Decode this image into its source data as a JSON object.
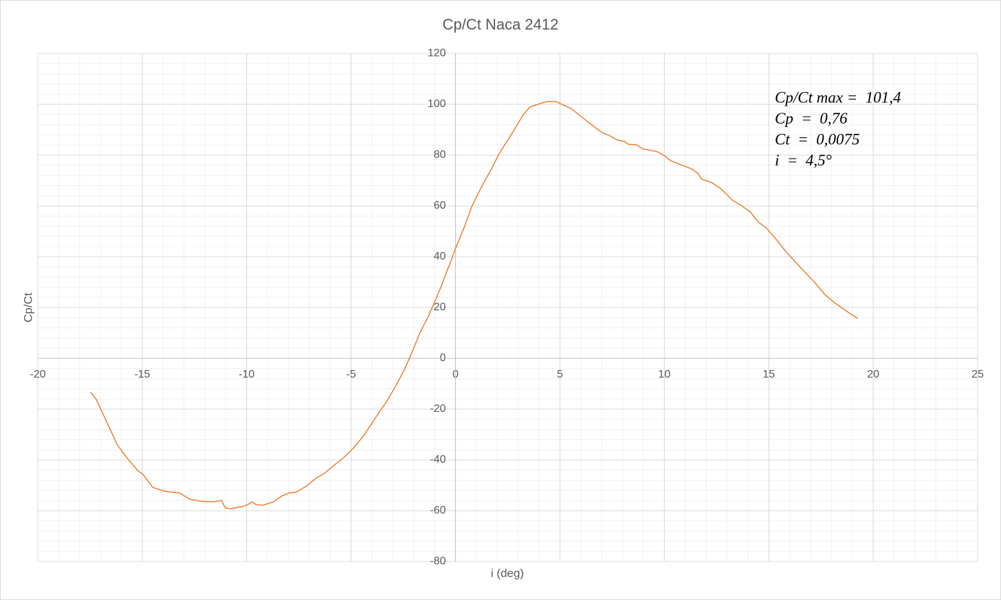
{
  "chart_data": {
    "type": "line",
    "title": "Cp/Ct Naca 2412",
    "x_label": "i (deg)",
    "y_label": "Cp/Ct",
    "annotations": [
      "Cp/Ct max =  101,4",
      "Cp  =  0,76",
      "Ct  =  0,0075",
      "i  =  4,5°"
    ],
    "color": "#ed7d31",
    "xlim": [
      -20,
      25
    ],
    "ylim": [
      -80,
      120
    ],
    "xticks": [
      -20,
      -15,
      -10,
      -5,
      0,
      5,
      10,
      15,
      20,
      25
    ],
    "yticks": [
      -80,
      -60,
      -40,
      -20,
      0,
      20,
      40,
      60,
      80,
      100,
      120
    ],
    "grid": true,
    "minor_grid_step": {
      "x": 1,
      "y": 4
    },
    "x": [
      -17.48,
      -17.2,
      -16.85,
      -16.5,
      -16.2,
      -15.7,
      -15.2,
      -14.94,
      -14.5,
      -13.9,
      -13.2,
      -12.74,
      -12.25,
      -11.6,
      -11.2,
      -11.03,
      -10.76,
      -10.27,
      -10,
      -9.74,
      -9.55,
      -9.22,
      -8.72,
      -8.3,
      -7.97,
      -7.64,
      -7.14,
      -6.7,
      -6.3,
      -5.83,
      -5.33,
      -4.9,
      -4.4,
      -3.75,
      -3.26,
      -2.86,
      -2.44,
      -2.04,
      -1.71,
      -1.32,
      -0.72,
      0,
      0.43,
      0.79,
      1.25,
      1.74,
      2.07,
      2.73,
      3.23,
      3.55,
      4.05,
      4.38,
      4.8,
      5.53,
      6.35,
      7.01,
      7.34,
      7.77,
      8.1,
      8.26,
      8.66,
      8.99,
      9.64,
      9.97,
      10.3,
      10.8,
      11.3,
      11.62,
      11.78,
      12.28,
      12.7,
      13.27,
      13.66,
      14.09,
      14.52,
      14.85,
      15.31,
      15.83,
      16.56,
      17.22,
      17.71,
      18.2,
      18.86,
      19.26
    ],
    "values": [
      -13.2,
      -16.2,
      -22.4,
      -28.6,
      -34,
      -39.5,
      -44.3,
      -45.9,
      -50.8,
      -52.4,
      -53,
      -55.4,
      -56.2,
      -56.5,
      -55.9,
      -58.9,
      -59.2,
      -58.4,
      -57.8,
      -56.5,
      -57.6,
      -57.8,
      -56.5,
      -54.1,
      -53,
      -52.7,
      -50.3,
      -47.3,
      -45.4,
      -42.2,
      -38.9,
      -35.4,
      -30.5,
      -22.4,
      -16.5,
      -10.8,
      -4.3,
      3.2,
      10,
      16.2,
      27.6,
      43.2,
      51.9,
      60,
      67.6,
      74.9,
      80.3,
      88.9,
      95.7,
      98.9,
      100.3,
      101.1,
      101.1,
      98.4,
      93,
      88.9,
      87.8,
      85.9,
      85.4,
      84.3,
      84.1,
      82.4,
      81.4,
      80,
      77.8,
      76.2,
      74.6,
      72.7,
      70.5,
      69.2,
      66.8,
      62.2,
      60.3,
      57.8,
      53.5,
      51.6,
      47.3,
      41.9,
      35.4,
      29.7,
      24.9,
      21.6,
      17.8,
      15.7
    ]
  }
}
